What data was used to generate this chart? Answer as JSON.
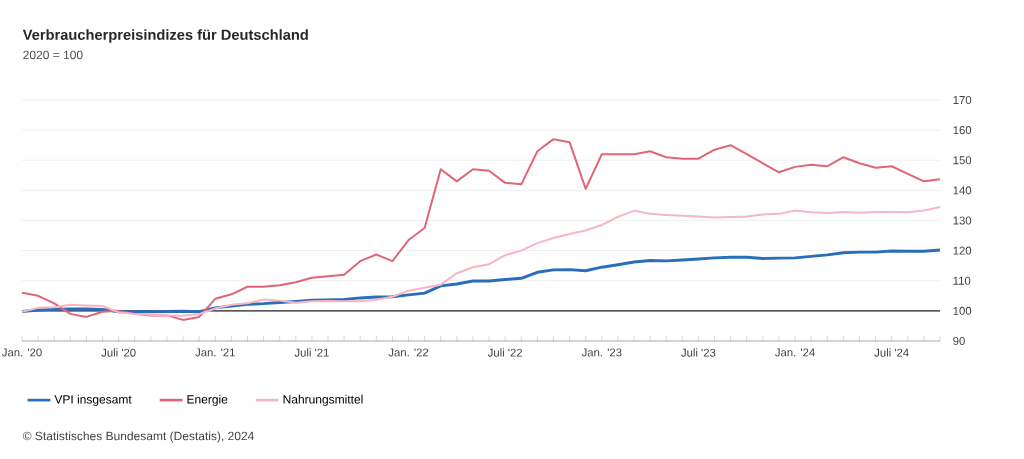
{
  "chart_data": {
    "type": "line",
    "title": "Verbraucherpreisindizes für Deutschland",
    "subtitle": "2020 = 100",
    "x": [
      "2020-01",
      "2020-02",
      "2020-03",
      "2020-04",
      "2020-05",
      "2020-06",
      "2020-07",
      "2020-08",
      "2020-09",
      "2020-10",
      "2020-11",
      "2020-12",
      "2021-01",
      "2021-02",
      "2021-03",
      "2021-04",
      "2021-05",
      "2021-06",
      "2021-07",
      "2021-08",
      "2021-09",
      "2021-10",
      "2021-11",
      "2021-12",
      "2022-01",
      "2022-02",
      "2022-03",
      "2022-04",
      "2022-05",
      "2022-06",
      "2022-07",
      "2022-08",
      "2022-09",
      "2022-10",
      "2022-11",
      "2022-12",
      "2023-01",
      "2023-02",
      "2023-03",
      "2023-04",
      "2023-05",
      "2023-06",
      "2023-07",
      "2023-08",
      "2023-09",
      "2023-10",
      "2023-11",
      "2023-12",
      "2024-01",
      "2024-02",
      "2024-03",
      "2024-04",
      "2024-05",
      "2024-06",
      "2024-07",
      "2024-08",
      "2024-09",
      "2024-10"
    ],
    "series": [
      {
        "name": "VPI insgesamt",
        "color": "#2a6ebb",
        "values": [
          99.8,
          100.3,
          100.5,
          100.6,
          100.6,
          100.5,
          99.7,
          99.7,
          99.7,
          99.8,
          99.9,
          99.7,
          101,
          101.6,
          102.2,
          102.4,
          102.8,
          103.1,
          103.5,
          103.6,
          103.8,
          104.3,
          104.6,
          104.7,
          105.3,
          105.9,
          108.3,
          108.9,
          109.9,
          109.9,
          110.4,
          110.8,
          112.8,
          113.6,
          113.7,
          113.3,
          114.5,
          115.3,
          116.2,
          116.7,
          116.6,
          116.9,
          117.2,
          117.6,
          117.8,
          117.8,
          117.4,
          117.5,
          117.6,
          118.1,
          118.6,
          119.3,
          119.5,
          119.5,
          119.9,
          119.8,
          119.8,
          120.2
        ]
      },
      {
        "name": "Energie",
        "color": "#e06677",
        "values": [
          106,
          105,
          102.5,
          99,
          98,
          99.7,
          100,
          99,
          98.5,
          98.5,
          97,
          98,
          104,
          105.5,
          108,
          108,
          108.5,
          109.5,
          111,
          111.5,
          112,
          116.5,
          118.7,
          116.5,
          123.5,
          127.5,
          147,
          143,
          147,
          146.5,
          142.5,
          142,
          153,
          157,
          156,
          140.5,
          152,
          152,
          152,
          153,
          151,
          150.5,
          150.5,
          153.5,
          155,
          152,
          149,
          146,
          147.8,
          148.5,
          148,
          151,
          149,
          147.5,
          148,
          145.5,
          143,
          143.7
        ]
      },
      {
        "name": "Nahrungsmittel",
        "color": "#f7b6c0",
        "values": [
          99.7,
          101,
          101.2,
          102,
          101.8,
          101.6,
          99.5,
          99,
          98.7,
          98.5,
          98.4,
          98.9,
          100.8,
          102,
          102.5,
          103.8,
          103.4,
          102.7,
          103.2,
          103.3,
          103.2,
          103.2,
          103.7,
          104.7,
          106.7,
          107.7,
          108.7,
          112.5,
          114.5,
          115.5,
          118.5,
          120,
          122.5,
          124.2,
          125.5,
          126.7,
          128.5,
          131.2,
          133.2,
          132.2,
          131.8,
          131.6,
          131.3,
          131,
          131.2,
          131.3,
          132,
          132.2,
          133.3,
          132.7,
          132.5,
          132.8,
          132.6,
          132.8,
          132.8,
          132.7,
          133.3,
          134.5
        ]
      }
    ],
    "xlim": [
      "2020-01",
      "2024-10"
    ],
    "xticks": [
      {
        "value": "2020-01",
        "label": "Jan. '20"
      },
      {
        "value": "2020-02",
        "label": null
      },
      {
        "value": "2020-03",
        "label": null
      },
      {
        "value": "2020-04",
        "label": null
      },
      {
        "value": "2020-05",
        "label": null
      },
      {
        "value": "2020-06",
        "label": null
      },
      {
        "value": "2020-07",
        "label": "Juli '20"
      },
      {
        "value": "2020-08",
        "label": null
      },
      {
        "value": "2020-09",
        "label": null
      },
      {
        "value": "2020-10",
        "label": null
      },
      {
        "value": "2020-11",
        "label": null
      },
      {
        "value": "2020-12",
        "label": null
      },
      {
        "value": "2021-01",
        "label": "Jan. '21"
      },
      {
        "value": "2021-02",
        "label": null
      },
      {
        "value": "2021-03",
        "label": null
      },
      {
        "value": "2021-04",
        "label": null
      },
      {
        "value": "2021-05",
        "label": null
      },
      {
        "value": "2021-06",
        "label": null
      },
      {
        "value": "2021-07",
        "label": "Juli '21"
      },
      {
        "value": "2021-08",
        "label": null
      },
      {
        "value": "2021-09",
        "label": null
      },
      {
        "value": "2021-10",
        "label": null
      },
      {
        "value": "2021-11",
        "label": null
      },
      {
        "value": "2021-12",
        "label": null
      },
      {
        "value": "2022-01",
        "label": "Jan. '22"
      },
      {
        "value": "2022-02",
        "label": null
      },
      {
        "value": "2022-03",
        "label": null
      },
      {
        "value": "2022-04",
        "label": null
      },
      {
        "value": "2022-05",
        "label": null
      },
      {
        "value": "2022-06",
        "label": null
      },
      {
        "value": "2022-07",
        "label": "Juli '22"
      },
      {
        "value": "2022-08",
        "label": null
      },
      {
        "value": "2022-09",
        "label": null
      },
      {
        "value": "2022-10",
        "label": null
      },
      {
        "value": "2022-11",
        "label": null
      },
      {
        "value": "2022-12",
        "label": null
      },
      {
        "value": "2023-01",
        "label": "Jan. '23"
      },
      {
        "value": "2023-02",
        "label": null
      },
      {
        "value": "2023-03",
        "label": null
      },
      {
        "value": "2023-04",
        "label": null
      },
      {
        "value": "2023-05",
        "label": null
      },
      {
        "value": "2023-06",
        "label": null
      },
      {
        "value": "2023-07",
        "label": "Juli '23"
      },
      {
        "value": "2023-08",
        "label": null
      },
      {
        "value": "2023-09",
        "label": null
      },
      {
        "value": "2023-10",
        "label": null
      },
      {
        "value": "2023-11",
        "label": null
      },
      {
        "value": "2023-12",
        "label": null
      },
      {
        "value": "2024-01",
        "label": "Jan. '24"
      },
      {
        "value": "2024-02",
        "label": null
      },
      {
        "value": "2024-03",
        "label": null
      },
      {
        "value": "2024-04",
        "label": null
      },
      {
        "value": "2024-05",
        "label": null
      },
      {
        "value": "2024-06",
        "label": null
      },
      {
        "value": "2024-07",
        "label": "Juli '24"
      },
      {
        "value": "2024-08",
        "label": null
      },
      {
        "value": "2024-09",
        "label": null
      },
      {
        "value": "2024-10",
        "label": null
      }
    ],
    "ylim": [
      90,
      170
    ],
    "yticks": [
      90,
      100,
      110,
      120,
      130,
      140,
      150,
      160,
      170
    ],
    "grid": "y",
    "legend": "bottom left",
    "marker": "none",
    "line_style": "solid",
    "ref_lines": [
      {
        "axis": "y",
        "value": 100,
        "color": "#222222"
      }
    ],
    "annotations": [
      "© Statistisches Bundesamt (Destatis), 2024"
    ]
  }
}
